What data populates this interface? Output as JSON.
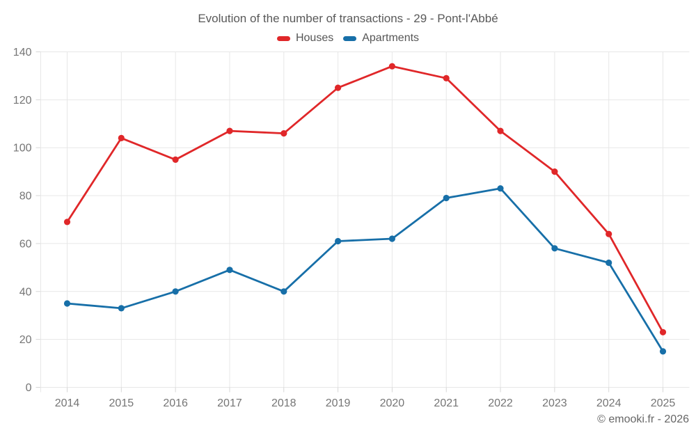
{
  "header": {
    "title": "Evolution of the number of transactions - 29 - Pont-l'Abbé"
  },
  "footer": {
    "credit": "© emooki.fr - 2026"
  },
  "colors": {
    "houses": "#e02729",
    "apartments": "#176fa8",
    "grid": "#e7e7e7",
    "tick": "#d6d6d6",
    "axis_label": "#757575"
  },
  "chart_data": {
    "type": "line",
    "title": "Evolution of the number of transactions - 29 - Pont-l'Abbé",
    "categories": [
      "2014",
      "2015",
      "2016",
      "2017",
      "2018",
      "2019",
      "2020",
      "2021",
      "2022",
      "2023",
      "2024",
      "2025"
    ],
    "series": [
      {
        "name": "Houses",
        "color": "#e02729",
        "values": [
          69,
          104,
          95,
          107,
          106,
          125,
          134,
          129,
          107,
          90,
          64,
          23
        ]
      },
      {
        "name": "Apartments",
        "color": "#176fa8",
        "values": [
          35,
          33,
          40,
          49,
          40,
          61,
          62,
          79,
          83,
          58,
          52,
          15
        ]
      }
    ],
    "xlabel": "",
    "ylabel": "",
    "ylim": [
      0,
      140
    ],
    "ytick_step": 20,
    "grid": true,
    "legend_position": "top",
    "marker": "circle"
  }
}
